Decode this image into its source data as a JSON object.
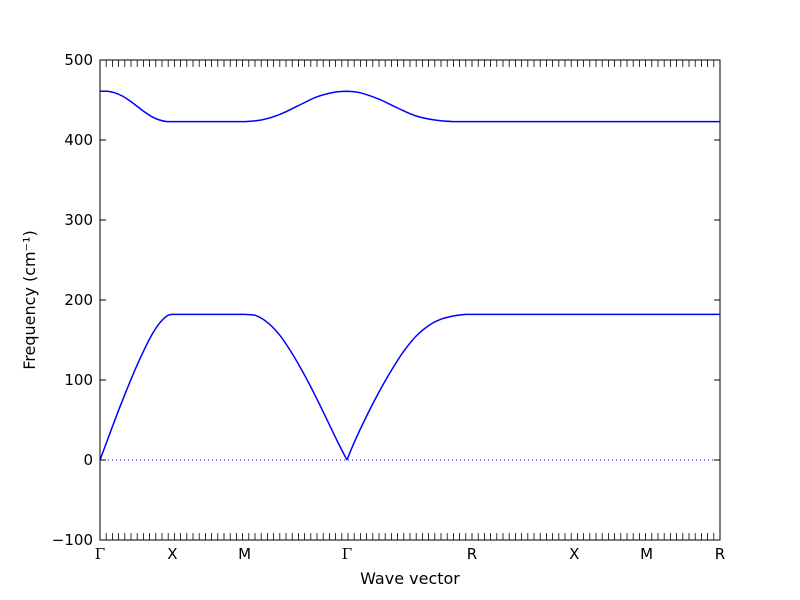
{
  "chart_data": {
    "type": "line",
    "xlabel": "Wave vector",
    "ylabel": "Frequency (cm⁻¹)",
    "ylim": [
      -100,
      500
    ],
    "yticks": [
      -100,
      0,
      100,
      200,
      300,
      400,
      500
    ],
    "xlim": [
      0,
      1
    ],
    "kpoints": [
      {
        "label": "Γ",
        "x": 0.0
      },
      {
        "label": "X",
        "x": 0.1167
      },
      {
        "label": "M",
        "x": 0.2333
      },
      {
        "label": "Γ",
        "x": 0.3983
      },
      {
        "label": "R",
        "x": 0.6
      },
      {
        "label": "X",
        "x": 0.765
      },
      {
        "label": "M",
        "x": 0.8817
      },
      {
        "label": "R",
        "x": 1.0
      }
    ],
    "zero_line": true,
    "grid": false,
    "line_color": "#0000ff",
    "zero_line_color": "#0000ff",
    "series": [
      {
        "x": [
          0,
          0.012,
          0.024,
          0.036,
          0.048,
          0.06,
          0.072,
          0.084,
          0.096,
          0.108,
          0.1167,
          0.14,
          0.175,
          0.2,
          0.2333,
          0.25,
          0.27,
          0.29,
          0.31,
          0.33,
          0.35,
          0.37,
          0.385,
          0.3983,
          0.41,
          0.43,
          0.45,
          0.47,
          0.49,
          0.51,
          0.53,
          0.55,
          0.57,
          0.59,
          0.6,
          0.7,
          0.8,
          1.0
        ],
        "values": [
          0,
          25,
          50,
          74,
          97,
          119,
          139,
          157,
          171,
          180,
          182,
          182,
          182,
          182,
          182,
          181,
          172,
          156,
          133,
          106,
          76,
          44,
          20,
          0,
          22,
          55,
          85,
          112,
          136,
          155,
          168,
          176,
          180,
          182,
          182,
          182,
          182,
          182
        ]
      },
      {
        "x": [
          0,
          0.012,
          0.024,
          0.036,
          0.048,
          0.06,
          0.072,
          0.084,
          0.096,
          0.108,
          0.1167,
          0.14,
          0.175,
          0.2,
          0.2333,
          0.26,
          0.29,
          0.32,
          0.35,
          0.38,
          0.3983,
          0.42,
          0.45,
          0.48,
          0.51,
          0.54,
          0.57,
          0.6,
          0.7,
          0.8,
          1.0
        ],
        "values": [
          461,
          461,
          459,
          455,
          449,
          442,
          435,
          429,
          425,
          423,
          423,
          423,
          423,
          423,
          423,
          425,
          432,
          443,
          454,
          460,
          461,
          459,
          451,
          440,
          430,
          425,
          423,
          423,
          423,
          423,
          423
        ]
      }
    ]
  }
}
